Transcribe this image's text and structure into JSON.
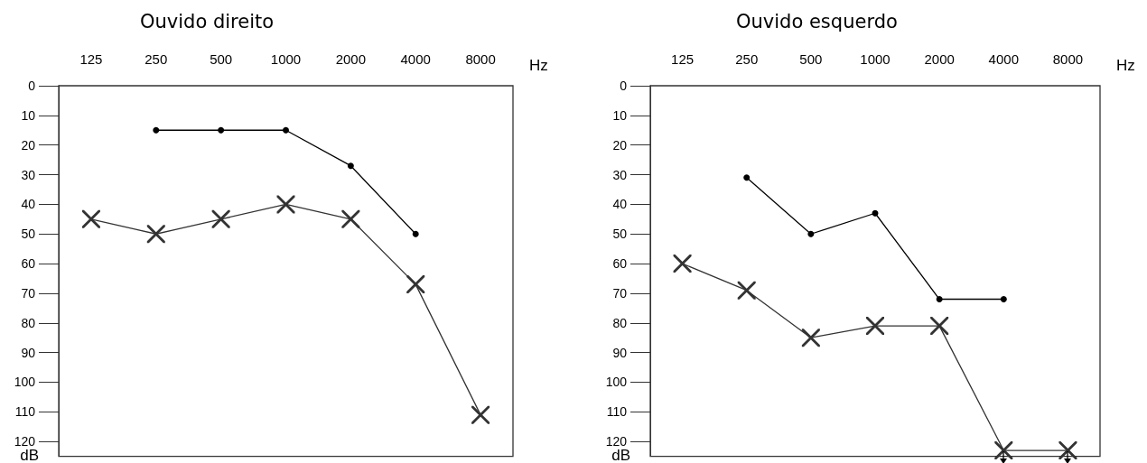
{
  "chart_data": [
    {
      "type": "line",
      "title": "Ouvido direito",
      "xlabel": "Hz",
      "ylabel": "dB",
      "categories": [
        "125",
        "250",
        "500",
        "1000",
        "2000",
        "4000",
        "8000"
      ],
      "ylim": [
        125,
        0
      ],
      "yticks": [
        0,
        10,
        20,
        30,
        40,
        50,
        60,
        70,
        80,
        90,
        100,
        110,
        120
      ],
      "series": [
        {
          "color": "#000000",
          "marker": "circle",
          "values": [
            null,
            15,
            15,
            15,
            27,
            50,
            null
          ]
        },
        {
          "color": "#333333",
          "marker": "cross",
          "values": [
            45,
            50,
            45,
            40,
            45,
            67,
            111
          ]
        }
      ]
    },
    {
      "type": "line",
      "title": "Ouvido esquerdo",
      "xlabel": "Hz",
      "ylabel": "dB",
      "categories": [
        "125",
        "250",
        "500",
        "1000",
        "2000",
        "4000",
        "8000"
      ],
      "ylim": [
        125,
        0
      ],
      "yticks": [
        0,
        10,
        20,
        30,
        40,
        50,
        60,
        70,
        80,
        90,
        100,
        110,
        120
      ],
      "series": [
        {
          "color": "#000000",
          "marker": "circle",
          "values": [
            null,
            31,
            50,
            43,
            72,
            72,
            null
          ]
        },
        {
          "color": "#333333",
          "marker": "cross",
          "values": [
            60,
            69,
            85,
            81,
            81,
            123,
            123
          ]
        }
      ]
    }
  ]
}
